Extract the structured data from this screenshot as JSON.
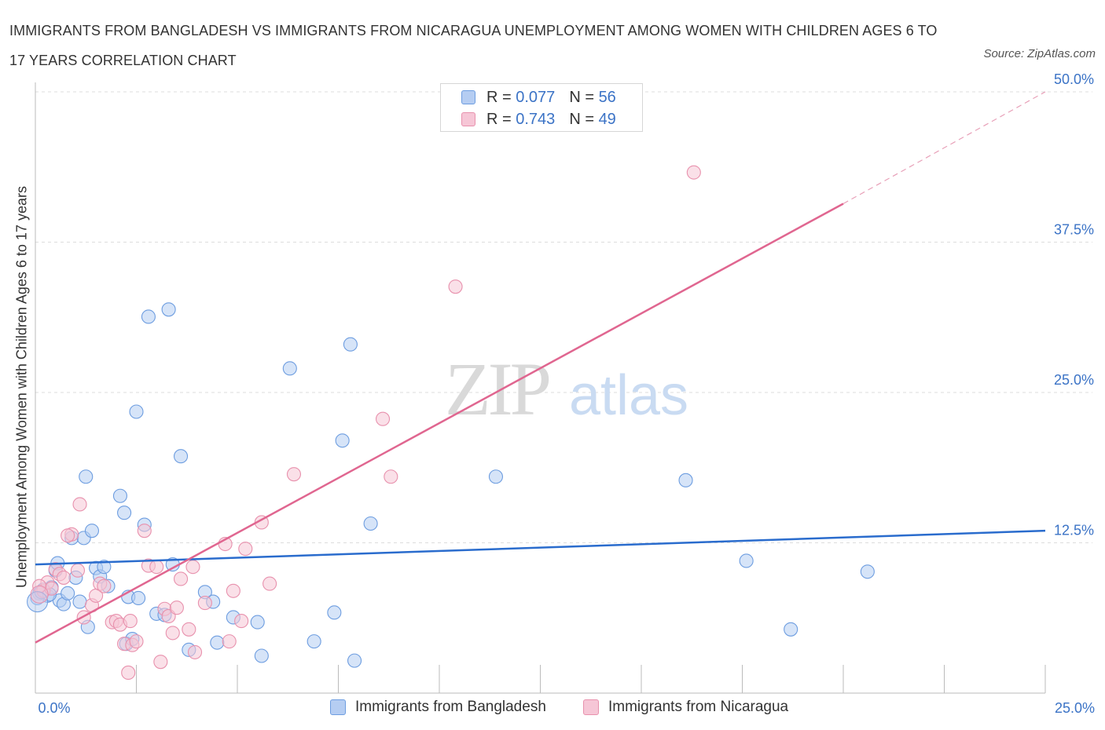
{
  "header": {
    "title": "IMMIGRANTS FROM BANGLADESH VS IMMIGRANTS FROM NICARAGUA UNEMPLOYMENT AMONG WOMEN WITH CHILDREN AGES 6 TO 17 YEARS CORRELATION CHART",
    "source": "Source: ZipAtlas.com"
  },
  "watermark": {
    "zip": "ZIP",
    "atlas": "atlas"
  },
  "legend": {
    "rows": [
      {
        "r_label": "R =",
        "r_value": "0.077",
        "n_label": "N =",
        "n_value": "56"
      },
      {
        "r_label": "R =",
        "r_value": "0.743",
        "n_label": "N =",
        "n_value": "49"
      }
    ]
  },
  "chart_data": {
    "type": "scatter",
    "title": "IMMIGRANTS FROM BANGLADESH VS IMMIGRANTS FROM NICARAGUA UNEMPLOYMENT AMONG WOMEN WITH CHILDREN AGES 6 TO 17 YEARS CORRELATION CHART",
    "xlabel": "",
    "ylabel": "Unemployment Among Women with Children Ages 6 to 17 years",
    "xlim": [
      0,
      25
    ],
    "ylim": [
      0,
      50
    ],
    "x_tick_labels": [
      "0.0%",
      "25.0%"
    ],
    "y_tick_labels": [
      "12.5%",
      "25.0%",
      "37.5%",
      "50.0%"
    ],
    "y_ticks": [
      12.5,
      25,
      37.5,
      50
    ],
    "x_minor_ticks": [
      2.5,
      5,
      7.5,
      10,
      12.5,
      15,
      17.5,
      20,
      22.5,
      25
    ],
    "grid": true,
    "legend_position": "top",
    "series": [
      {
        "name": "Immigrants from Bangladesh",
        "color": "#6d9de0",
        "fill": "#b5cdf2",
        "r": 0.077,
        "n": 56,
        "trend": {
          "x0": 0,
          "y0": 10.7,
          "x1": 25,
          "y1": 13.5
        },
        "points": [
          [
            0.1,
            8.3
          ],
          [
            0.2,
            8.6
          ],
          [
            0.3,
            8.1
          ],
          [
            0.4,
            8.8
          ],
          [
            0.5,
            10.2
          ],
          [
            0.6,
            7.7
          ],
          [
            0.7,
            7.4
          ],
          [
            0.8,
            8.3
          ],
          [
            0.9,
            12.9
          ],
          [
            1.0,
            9.6
          ],
          [
            1.1,
            7.6
          ],
          [
            1.2,
            12.9
          ],
          [
            1.3,
            5.5
          ],
          [
            1.4,
            13.5
          ],
          [
            1.5,
            10.4
          ],
          [
            1.6,
            9.7
          ],
          [
            1.7,
            10.5
          ],
          [
            1.8,
            8.9
          ],
          [
            2.1,
            16.4
          ],
          [
            2.2,
            15.0
          ],
          [
            2.25,
            4.1
          ],
          [
            2.3,
            8.0
          ],
          [
            2.4,
            4.5
          ],
          [
            2.5,
            23.4
          ],
          [
            2.7,
            14.0
          ],
          [
            2.8,
            31.3
          ],
          [
            3.0,
            6.6
          ],
          [
            3.2,
            6.5
          ],
          [
            3.3,
            31.9
          ],
          [
            3.4,
            10.7
          ],
          [
            3.6,
            19.7
          ],
          [
            3.8,
            3.6
          ],
          [
            4.2,
            8.4
          ],
          [
            4.4,
            7.6
          ],
          [
            4.5,
            4.2
          ],
          [
            4.9,
            6.3
          ],
          [
            5.6,
            3.1
          ],
          [
            5.5,
            5.9
          ],
          [
            6.3,
            27.0
          ],
          [
            6.9,
            4.3
          ],
          [
            7.4,
            6.7
          ],
          [
            7.6,
            21.0
          ],
          [
            7.8,
            29.0
          ],
          [
            7.9,
            2.7
          ],
          [
            8.3,
            14.1
          ],
          [
            11.4,
            18.0
          ],
          [
            16.1,
            17.7
          ],
          [
            17.6,
            11.0
          ],
          [
            18.7,
            5.3
          ],
          [
            20.6,
            10.1
          ],
          [
            0.05,
            7.9
          ],
          [
            0.15,
            8.4
          ],
          [
            1.25,
            18.0
          ],
          [
            0.35,
            8.2
          ],
          [
            0.55,
            10.8
          ],
          [
            2.55,
            7.9
          ]
        ]
      },
      {
        "name": "Immigrants from Nicaragua",
        "color": "#e891ad",
        "fill": "#f6c6d6",
        "r": 0.743,
        "n": 49,
        "trend": {
          "x0": 0,
          "y0": 4.2,
          "x1": 20,
          "y1": 40.7
        },
        "trend_dashed": {
          "x0": 20,
          "y0": 40.7,
          "x1": 25,
          "y1": 50
        },
        "points": [
          [
            0.2,
            8.5
          ],
          [
            0.3,
            9.2
          ],
          [
            0.4,
            8.7
          ],
          [
            0.5,
            10.3
          ],
          [
            0.6,
            9.9
          ],
          [
            0.7,
            9.6
          ],
          [
            0.9,
            13.2
          ],
          [
            1.1,
            15.7
          ],
          [
            1.2,
            6.3
          ],
          [
            1.4,
            7.3
          ],
          [
            1.5,
            8.1
          ],
          [
            1.6,
            9.1
          ],
          [
            1.7,
            8.9
          ],
          [
            1.9,
            5.9
          ],
          [
            2.0,
            6.0
          ],
          [
            2.1,
            5.7
          ],
          [
            2.2,
            4.1
          ],
          [
            2.3,
            1.7
          ],
          [
            2.4,
            4.0
          ],
          [
            2.5,
            4.3
          ],
          [
            2.7,
            13.5
          ],
          [
            2.8,
            10.6
          ],
          [
            3.1,
            2.6
          ],
          [
            3.2,
            7.0
          ],
          [
            3.3,
            6.4
          ],
          [
            3.4,
            5.0
          ],
          [
            3.5,
            7.1
          ],
          [
            3.6,
            9.5
          ],
          [
            3.8,
            5.3
          ],
          [
            3.9,
            10.5
          ],
          [
            3.95,
            3.4
          ],
          [
            4.2,
            7.5
          ],
          [
            4.7,
            12.4
          ],
          [
            4.8,
            4.3
          ],
          [
            4.9,
            8.5
          ],
          [
            5.1,
            6.0
          ],
          [
            5.2,
            12.0
          ],
          [
            5.6,
            14.2
          ],
          [
            5.8,
            9.1
          ],
          [
            6.4,
            18.2
          ],
          [
            8.6,
            22.8
          ],
          [
            8.8,
            18.0
          ],
          [
            10.4,
            33.8
          ],
          [
            16.3,
            43.3
          ],
          [
            0.8,
            13.1
          ],
          [
            0.1,
            8.9
          ],
          [
            1.05,
            10.2
          ],
          [
            2.35,
            6.0
          ],
          [
            3.0,
            10.5
          ]
        ]
      }
    ]
  },
  "bottom_legend": {
    "items": [
      {
        "label": "Immigrants from Bangladesh"
      },
      {
        "label": "Immigrants from Nicaragua"
      }
    ]
  }
}
